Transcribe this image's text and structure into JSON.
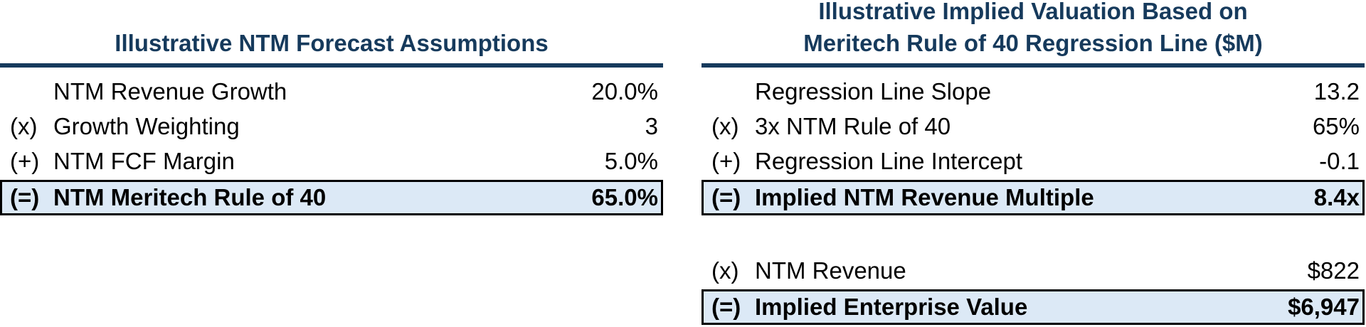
{
  "colors": {
    "navy": "#163A5C",
    "highlight": "#DCE9F6",
    "border_black": "#000000"
  },
  "left_table": {
    "title": "Illustrative NTM Forecast Assumptions",
    "rows": [
      {
        "prefix": "",
        "label": "NTM Revenue Growth",
        "value": "20.0%"
      },
      {
        "prefix": "(x)",
        "label": "Growth Weighting",
        "value": "3"
      },
      {
        "prefix": "(+)",
        "label": "NTM FCF Margin",
        "value": "5.0%"
      },
      {
        "prefix": "(=)",
        "label": "NTM Meritech Rule of 40",
        "value": "65.0%"
      }
    ]
  },
  "right_table": {
    "title_line1": "Illustrative Implied Valuation Based on",
    "title_line2": "Meritech Rule of 40 Regression Line ($M)",
    "rows": [
      {
        "prefix": "",
        "label": "Regression Line Slope",
        "value": "13.2"
      },
      {
        "prefix": "(x)",
        "label": "3x NTM Rule of 40",
        "value": "65%"
      },
      {
        "prefix": "(+)",
        "label": "Regression Line Intercept",
        "value": "-0.1"
      },
      {
        "prefix": "(=)",
        "label": "Implied NTM Revenue Multiple",
        "value": "8.4x"
      },
      {
        "prefix": "(x)",
        "label": "NTM Revenue",
        "value": "$822"
      },
      {
        "prefix": "(=)",
        "label": "Implied Enterprise Value",
        "value": "$6,947"
      }
    ]
  }
}
